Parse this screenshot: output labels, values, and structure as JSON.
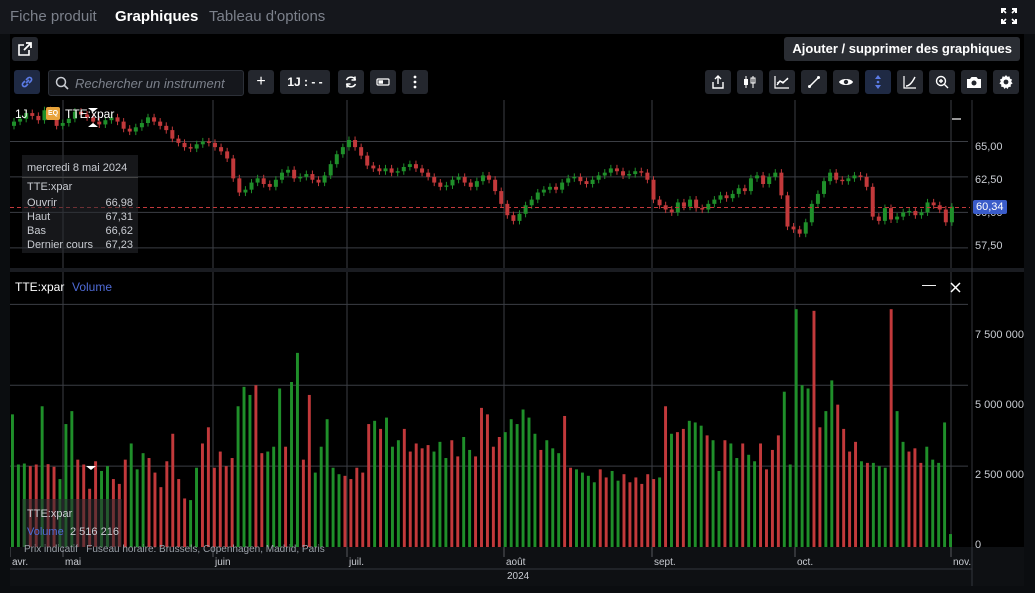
{
  "tabs": [
    {
      "label": "Fiche produit"
    },
    {
      "label": "Graphiques"
    },
    {
      "label": "Tableau d'options"
    }
  ],
  "header": {
    "add_charts_label": "Ajouter / supprimer des graphiques"
  },
  "toolbar": {
    "search_placeholder": "Rechercher un instrument",
    "period_label": "1J : - -",
    "add_label": "+"
  },
  "price_pane": {
    "period": "1J",
    "exchange_badge": "EQ",
    "instrument": "TTE:xpar",
    "current_price_label": "60,34",
    "y_ticks": [
      "65,00",
      "62,50",
      "60,00",
      "57,50"
    ],
    "tooltip": {
      "date": "mercredi 8 mai 2024",
      "instrument": "TTE:xpar",
      "rows": [
        {
          "label": "Ouvrir",
          "value": "66,98"
        },
        {
          "label": "Haut",
          "value": "67,31"
        },
        {
          "label": "Bas",
          "value": "66,62"
        },
        {
          "label": "Dernier cours",
          "value": "67,23"
        }
      ]
    }
  },
  "volume_pane": {
    "instrument": "TTE:xpar",
    "indicator": "Volume",
    "y_ticks": [
      "7 500 000",
      "5 000 000",
      "2 500 000",
      "0"
    ],
    "tooltip": {
      "instrument": "TTE:xpar",
      "label": "Volume",
      "value": "2 516 216"
    }
  },
  "footer": {
    "note": "Prix indicatif   Fuseau horaire: Brussels, Copenhagen, Madrid, Paris",
    "months": [
      "avr.",
      "mai",
      "juin",
      "juil.",
      "août",
      "sept.",
      "oct.",
      "nov."
    ],
    "year": "2024"
  },
  "colors": {
    "up": "#1f8f2a",
    "down": "#c2393b",
    "accent": "#4f6bd6",
    "price_tag": "#3a5cc9"
  },
  "chart_data": {
    "type": "bar",
    "title": "",
    "series": [
      {
        "name": "Volume",
        "values": [
          4100000,
          2550000,
          2580000,
          2500000,
          2550000,
          4350000,
          2560000,
          2480000,
          2100000,
          3800000,
          4200000,
          2700000,
          2550000,
          1800000,
          2650000,
          2350000,
          2500000,
          2100000,
          1950000,
          2700000,
          3200000,
          2400000,
          2900000,
          2750000,
          2300000,
          1850000,
          2650000,
          3500000,
          2100000,
          1500000,
          1450000,
          2450000,
          3200000,
          3700000,
          2450000,
          2950000,
          2500000,
          2750000,
          4350000,
          4950000,
          4700000,
          5000000,
          2900000,
          2950000,
          3100000,
          4900000,
          3100000,
          5100000,
          6000000,
          2700000,
          4700000,
          2300000,
          3100000,
          3950000,
          2450000,
          2250000,
          2200000,
          2100000,
          2450000,
          2300000,
          3800000,
          3900000,
          3650000,
          4000000,
          3100000,
          3300000,
          3650000,
          2950000,
          3200000,
          3050000,
          3150000,
          2950000,
          3250000,
          2750000,
          3300000,
          2800000,
          3400000,
          3000000,
          2800000,
          4300000,
          4100000,
          3100000,
          3400000,
          3550000,
          3950000,
          3800000,
          4250000,
          4000000,
          3500000,
          3000000,
          3300000,
          3050000,
          2900000,
          4050000,
          2450000,
          2400000,
          2300000,
          2200000,
          2000000,
          2400000,
          2150000,
          2350000,
          2050000,
          2250000,
          2000000,
          2150000,
          1950000,
          2250000,
          2100000,
          2150000,
          4350000,
          3500000,
          3550000,
          3650000,
          3900000,
          3850000,
          3750000,
          3450000,
          3300000,
          2350000,
          3300000,
          3200000,
          2750000,
          3200000,
          2850000,
          2650000,
          3200000,
          2400000,
          3000000,
          3450000,
          4800000,
          2550000,
          7350000,
          5000000,
          4900000,
          7300000,
          3700000,
          4200000,
          5150000,
          4400000,
          3650000,
          2950000,
          3250000,
          2650000,
          2600000,
          2600000,
          2500000,
          2450000,
          7350000,
          4200000,
          3250000,
          2950000,
          3050000,
          2600000,
          3100000,
          2700000,
          2600000,
          3850000,
          400000
        ]
      }
    ],
    "ylim": [
      0,
      8500000
    ],
    "x_tick_labels": [
      "avr.",
      "mai",
      "juin",
      "juil.",
      "août",
      "sept.",
      "oct.",
      "nov."
    ],
    "y_tick_labels": [
      "7 500 000",
      "5 000 000",
      "2 500 000",
      "0"
    ],
    "price_series": {
      "name": "TTE:xpar",
      "type": "candlestick",
      "closes": [
        66.4,
        66.6,
        67.0,
        66.8,
        66.5,
        67.2,
        67.0,
        66.1,
        66.3,
        66.6,
        67.1,
        66.9,
        66.7,
        66.4,
        66.2,
        66.5,
        66.7,
        66.4,
        65.9,
        65.7,
        66.0,
        66.3,
        66.7,
        66.4,
        66.1,
        65.8,
        65.2,
        64.9,
        64.6,
        64.5,
        64.8,
        65.0,
        64.9,
        64.6,
        64.3,
        63.8,
        62.4,
        61.4,
        61.6,
        62.1,
        62.4,
        62.0,
        61.8,
        62.3,
        62.8,
        63.0,
        62.4,
        62.5,
        62.7,
        62.3,
        62.1,
        62.6,
        63.4,
        64.1,
        64.6,
        65.1,
        64.6,
        64.0,
        63.3,
        63.1,
        62.9,
        63.1,
        62.8,
        62.9,
        63.2,
        63.4,
        63.1,
        62.8,
        62.5,
        62.1,
        61.8,
        61.9,
        62.3,
        62.5,
        62.1,
        61.8,
        62.2,
        62.6,
        62.3,
        61.5,
        60.6,
        59.8,
        59.4,
        59.9,
        60.5,
        60.9,
        61.4,
        61.6,
        61.8,
        61.6,
        62.1,
        62.4,
        62.5,
        62.2,
        62.0,
        62.3,
        62.6,
        62.8,
        63.1,
        62.9,
        62.6,
        62.7,
        62.9,
        62.8,
        62.3,
        60.9,
        60.5,
        60.2,
        60.0,
        60.7,
        60.4,
        60.9,
        60.3,
        60.2,
        60.6,
        60.9,
        61.2,
        61.0,
        61.3,
        61.7,
        61.5,
        62.4,
        62.6,
        62.0,
        62.5,
        62.8,
        61.2,
        59.0,
        58.8,
        58.5,
        59.3,
        60.6,
        61.3,
        62.2,
        62.8,
        62.3,
        62.2,
        62.4,
        62.6,
        62.5,
        61.8,
        59.7,
        59.4,
        60.3,
        59.5,
        59.7,
        60.0,
        60.1,
        59.8,
        60.0,
        60.7,
        60.5,
        60.2,
        59.3,
        60.4
      ],
      "y_tick_labels": [
        "65,00",
        "62,50",
        "60,00",
        "57,50"
      ],
      "last": 60.34
    }
  }
}
